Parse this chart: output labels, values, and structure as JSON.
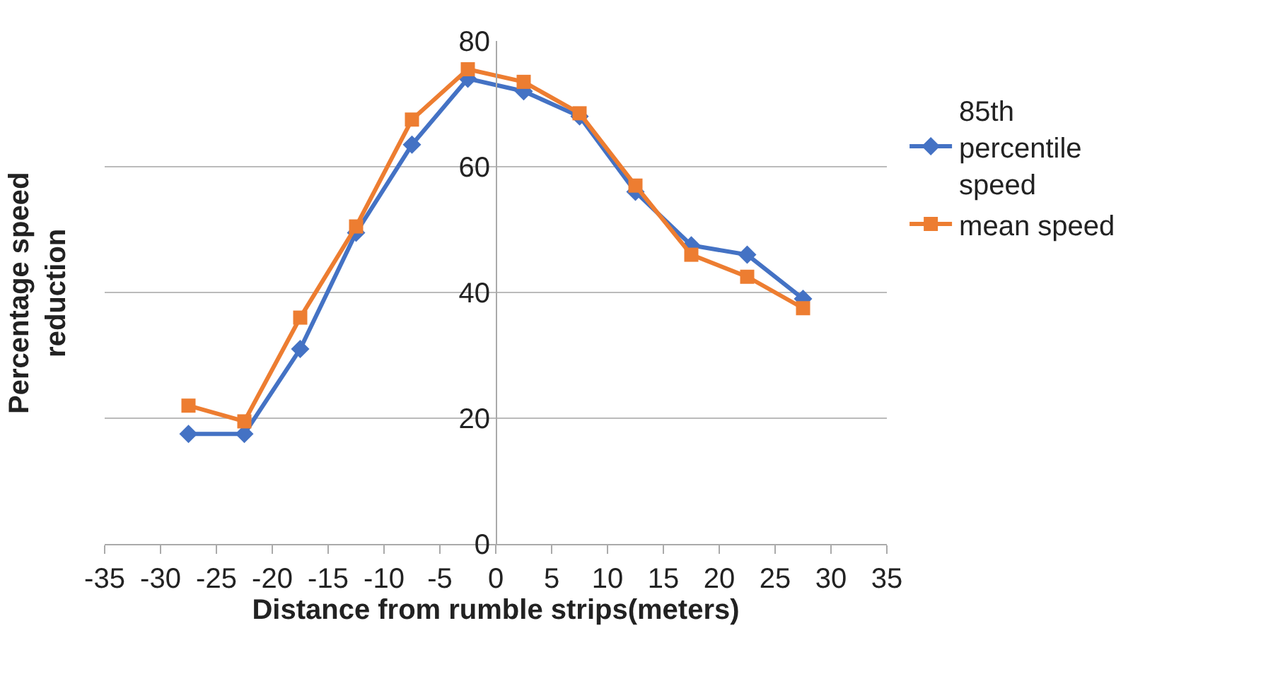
{
  "chart_data": {
    "type": "line",
    "xlabel": "Distance from rumble strips(meters)",
    "ylabel": "Percentage speed reduction",
    "x": [
      -27.5,
      -22.5,
      -17.5,
      -12.5,
      -7.5,
      -2.5,
      2.5,
      7.5,
      12.5,
      17.5,
      22.5,
      27.5
    ],
    "series": [
      {
        "name": "85th percentile speed",
        "color": "#4472c4",
        "marker": "diamond",
        "values": [
          17.5,
          17.5,
          31,
          49.5,
          63.5,
          74,
          72,
          68,
          56,
          47.5,
          46,
          39
        ]
      },
      {
        "name": "mean speed",
        "color": "#ed7d31",
        "marker": "square",
        "values": [
          22,
          19.5,
          36,
          50.5,
          67.5,
          75.5,
          73.5,
          68.5,
          57,
          46,
          42.5,
          37.5
        ]
      }
    ],
    "xlim": [
      -35,
      35
    ],
    "xticks": [
      -35,
      -30,
      -25,
      -20,
      -15,
      -10,
      -5,
      0,
      5,
      10,
      15,
      20,
      25,
      30,
      35
    ],
    "ylim": [
      0,
      80
    ],
    "yticks": [
      0,
      20,
      40,
      60,
      80
    ],
    "grid": "y",
    "legend": "right"
  }
}
